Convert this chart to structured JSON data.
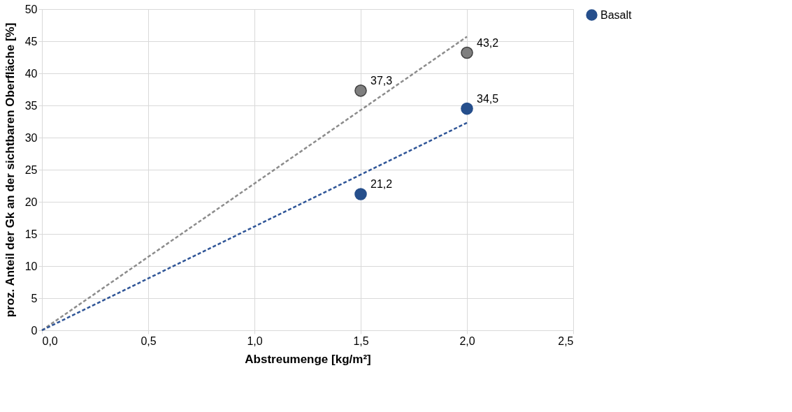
{
  "chart_data": {
    "type": "scatter",
    "xlabel": "Abstreumenge [kg/m²]",
    "ylabel": "proz. Anteil der Gk an der sichtbaren Oberfläche [%]",
    "xlim": [
      0,
      2.5
    ],
    "xticks": [
      {
        "value": 0,
        "label": "0,0"
      },
      {
        "value": 0.5,
        "label": "0,5"
      },
      {
        "value": 1,
        "label": "1,0"
      },
      {
        "value": 1.5,
        "label": "1,5"
      },
      {
        "value": 2,
        "label": "2,0"
      },
      {
        "value": 2.5,
        "label": "2,5"
      }
    ],
    "ylim": [
      0,
      50
    ],
    "yticks": [
      0,
      5,
      10,
      15,
      20,
      25,
      30,
      35,
      40,
      45,
      50
    ],
    "grid": true,
    "legend": "right",
    "marker": "circle",
    "series": [
      {
        "color": "#7f7f7f",
        "x": [
          1.5,
          2.0
        ],
        "values": [
          37.3,
          43.2
        ],
        "value_labels": [
          "37,3",
          "43,2"
        ]
      },
      {
        "name": "Basalt",
        "color": "#264f8c",
        "x": [
          1.5,
          2.0
        ],
        "values": [
          21.2,
          34.5
        ],
        "value_labels": [
          "21,2",
          "34,5"
        ]
      },
      {
        "type": "line",
        "marker": "none",
        "color": "#8c8c8c",
        "line_style": "dashed",
        "x": [
          0,
          2.0
        ],
        "values": [
          0,
          45.7
        ]
      },
      {
        "type": "line",
        "marker": "none",
        "color": "#2f5597",
        "line_style": "dashed",
        "x": [
          0,
          2.0
        ],
        "values": [
          0,
          32.3
        ]
      }
    ]
  }
}
